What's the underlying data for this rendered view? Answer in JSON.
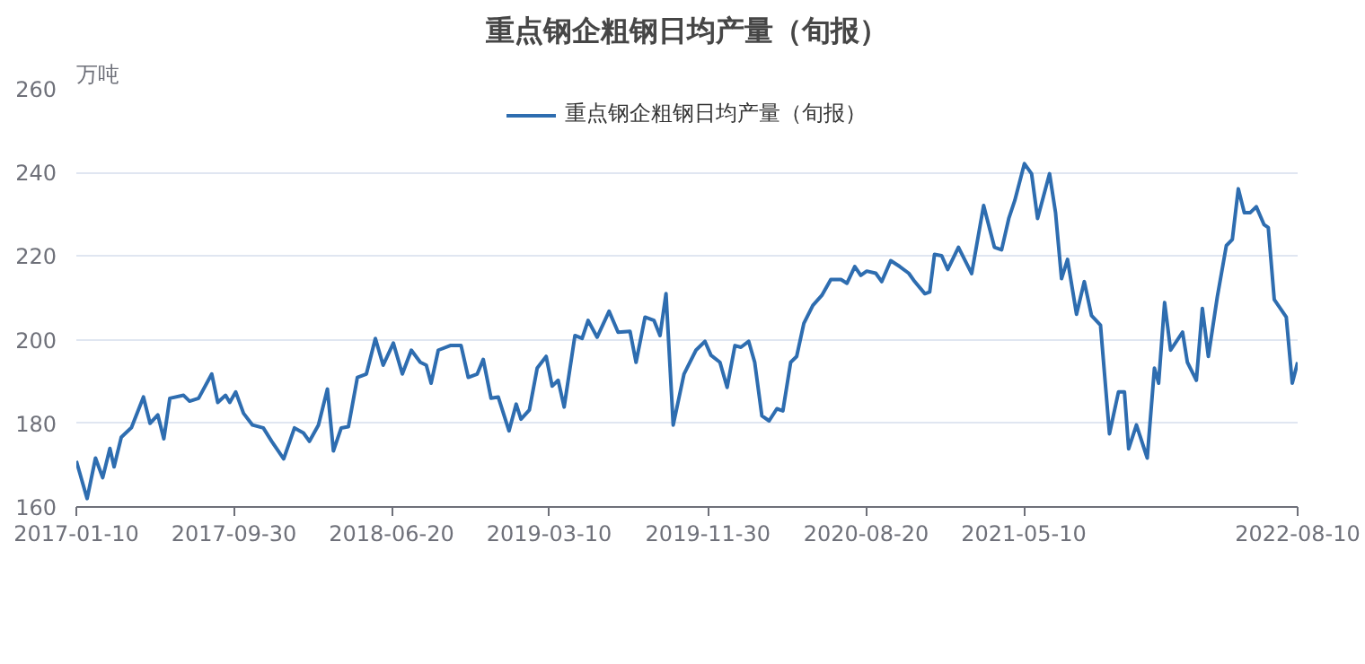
{
  "chart_data": {
    "type": "line",
    "title": "重点钢企粗钢日均产量（旬报）",
    "ylabel": "万吨",
    "xlim": [
      "2017-01-10",
      "2022-08-10"
    ],
    "xticks": [
      {
        "value": "2017-01-10",
        "label": "2017-01-10"
      },
      {
        "value": "2017-09-30",
        "label": "2017-09-30"
      },
      {
        "value": "2018-06-20",
        "label": "2018-06-20"
      },
      {
        "value": "2019-03-10",
        "label": "2019-03-10"
      },
      {
        "value": "2019-11-30",
        "label": "2019-11-30"
      },
      {
        "value": "2020-08-20",
        "label": "2020-08-20"
      },
      {
        "value": "2021-05-10",
        "label": "2021-05-10"
      },
      {
        "value": "2022-08-10",
        "label": "2022-08-10"
      }
    ],
    "ylim": [
      160,
      260
    ],
    "yticks": [
      160,
      180,
      200,
      220,
      240,
      260
    ],
    "grid": "y",
    "legend": "top",
    "line_style": "solid",
    "x": [
      "2017-01-10",
      "2017-01-28",
      "2017-02-11",
      "2017-02-23",
      "2017-03-07",
      "2017-03-14",
      "2017-03-26",
      "2017-04-12",
      "2017-05-02",
      "2017-05-13",
      "2017-05-26",
      "2017-06-05",
      "2017-06-15",
      "2017-07-08",
      "2017-07-18",
      "2017-08-02",
      "2017-08-24",
      "2017-09-03",
      "2017-09-16",
      "2017-09-23",
      "2017-10-03",
      "2017-10-16",
      "2017-10-31",
      "2017-11-18",
      "2017-12-02",
      "2017-12-22",
      "2018-01-09",
      "2018-01-24",
      "2018-02-03",
      "2018-02-18",
      "2018-03-05",
      "2018-03-15",
      "2018-03-28",
      "2018-04-09",
      "2018-04-24",
      "2018-05-09",
      "2018-05-24",
      "2018-06-06",
      "2018-06-23",
      "2018-07-08",
      "2018-07-23",
      "2018-08-07",
      "2018-08-17",
      "2018-08-25",
      "2018-09-06",
      "2018-09-26",
      "2018-10-14",
      "2018-10-26",
      "2018-11-10",
      "2018-11-20",
      "2018-12-03",
      "2018-12-15",
      "2019-01-02",
      "2019-01-14",
      "2019-01-22",
      "2019-02-05",
      "2019-02-18",
      "2019-03-05",
      "2019-03-15",
      "2019-03-25",
      "2019-04-04",
      "2019-04-22",
      "2019-05-04",
      "2019-05-14",
      "2019-05-29",
      "2019-06-18",
      "2019-07-03",
      "2019-07-23",
      "2019-08-02",
      "2019-08-17",
      "2019-09-01",
      "2019-09-11",
      "2019-09-21",
      "2019-10-03",
      "2019-10-21",
      "2019-11-10",
      "2019-11-25",
      "2019-12-05",
      "2019-12-20",
      "2020-01-01",
      "2020-01-14",
      "2020-01-24",
      "2020-02-06",
      "2020-02-16",
      "2020-02-28",
      "2020-03-11",
      "2020-03-24",
      "2020-04-03",
      "2020-04-16",
      "2020-04-26",
      "2020-05-08",
      "2020-05-23",
      "2020-06-07",
      "2020-06-22",
      "2020-07-09",
      "2020-07-19",
      "2020-08-01",
      "2020-08-11",
      "2020-08-21",
      "2020-09-05",
      "2020-09-15",
      "2020-09-30",
      "2020-10-15",
      "2020-10-30",
      "2020-11-09",
      "2020-11-26",
      "2020-12-04",
      "2020-12-12",
      "2020-12-24",
      "2021-01-03",
      "2021-01-21",
      "2021-02-12",
      "2021-03-04",
      "2021-03-22",
      "2021-04-03",
      "2021-04-15",
      "2021-04-25",
      "2021-05-11",
      "2021-05-23",
      "2021-06-02",
      "2021-06-22",
      "2021-07-02",
      "2021-07-12",
      "2021-07-22",
      "2021-08-06",
      "2021-08-19",
      "2021-08-31",
      "2021-09-15",
      "2021-09-30",
      "2021-10-15",
      "2021-10-25",
      "2021-11-01",
      "2021-11-14",
      "2021-12-02",
      "2021-12-14",
      "2021-12-21",
      "2021-12-31",
      "2022-01-10",
      "2022-01-30",
      "2022-02-07",
      "2022-02-22",
      "2022-03-04",
      "2022-03-14",
      "2022-03-29",
      "2022-04-13",
      "2022-04-23",
      "2022-05-03",
      "2022-05-13",
      "2022-05-23",
      "2022-06-02",
      "2022-06-15",
      "2022-06-22",
      "2022-07-02",
      "2022-07-22",
      "2022-08-01",
      "2022-08-10"
    ],
    "series": [
      {
        "name": "重点钢企粗钢日均产量（旬报）",
        "color": "#2e6db0",
        "values": [
          171,
          162,
          171.7,
          167,
          174,
          169.6,
          176.7,
          179,
          186.3,
          180,
          182,
          176.3,
          186,
          186.7,
          185.3,
          186,
          191.8,
          185,
          186.7,
          185,
          187.5,
          182.4,
          179.6,
          178.9,
          175.7,
          171.5,
          178.9,
          177.7,
          175.7,
          179.6,
          188.2,
          173.4,
          178.9,
          179.2,
          191,
          191.8,
          200.3,
          193.9,
          199.2,
          191.8,
          197.5,
          194.6,
          193.9,
          189.6,
          197.5,
          198.6,
          198.6,
          191,
          191.8,
          195.3,
          186,
          186.3,
          178.2,
          184.6,
          181,
          183.2,
          193.2,
          196,
          188.9,
          190.3,
          183.9,
          201,
          200.3,
          204.6,
          200.6,
          206.8,
          201.8,
          202,
          194.6,
          205.4,
          204.6,
          201,
          211,
          179.6,
          191.8,
          197.5,
          199.6,
          196.3,
          194.6,
          188.6,
          198.6,
          198.2,
          199.6,
          194.6,
          181.8,
          180.6,
          183.5,
          183,
          194.6,
          196,
          203.9,
          208.2,
          210.6,
          214.4,
          214.4,
          213.5,
          217.5,
          215.4,
          216.4,
          215.9,
          213.9,
          218.9,
          217.5,
          215.9,
          213.9,
          211,
          211.4,
          220.4,
          220.1,
          216.8,
          222.1,
          215.8,
          232.1,
          222.1,
          221.5,
          229,
          233.3,
          242.1,
          239.7,
          229,
          239.7,
          230.4,
          214.6,
          219.2,
          206.1,
          213.9,
          205.8,
          203.5,
          177.5,
          187.5,
          187.5,
          173.9,
          179.6,
          171.7,
          193.2,
          189.6,
          208.9,
          197.5,
          201.8,
          194.6,
          190.3,
          207.5,
          196,
          210.3,
          222.5,
          224,
          236.1,
          230.4,
          230.4,
          231.8,
          227.5,
          226.8,
          209.6,
          205.4,
          189.6,
          194.6
        ]
      }
    ]
  }
}
